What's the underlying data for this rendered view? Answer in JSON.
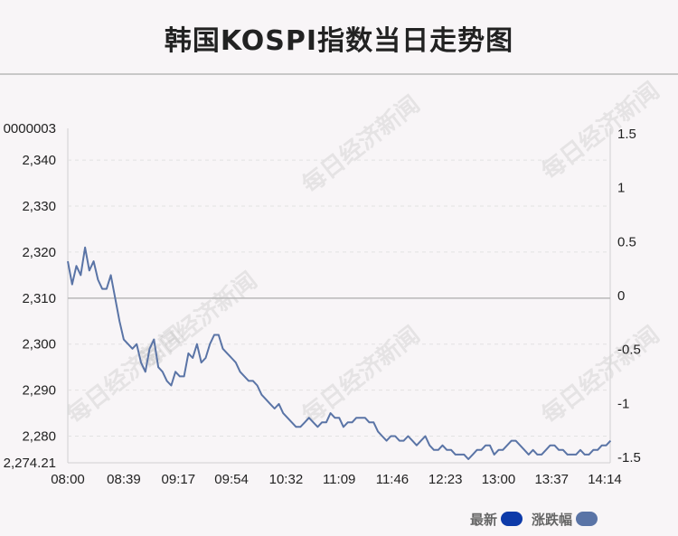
{
  "title": "韩国KOSPI指数当日走势图",
  "watermark_text": "每日经济新闻",
  "legend": {
    "latest_label": "最新",
    "change_label": "涨跌幅",
    "latest_color": "#0d3aa9",
    "change_color": "#5a74a6"
  },
  "chart_data": {
    "type": "line",
    "x_ticks": [
      "08:00",
      "08:39",
      "09:17",
      "09:54",
      "10:32",
      "11:09",
      "11:46",
      "12:23",
      "13:00",
      "13:37",
      "14:14"
    ],
    "y_left_ticks": [
      "2,274.21",
      "2,280",
      "2,290",
      "2,300",
      "2,310",
      "2,320",
      "2,330",
      "2,340",
      "0000003"
    ],
    "y_right_ticks": [
      "-1.5",
      "-1",
      "-0.5",
      "0",
      "0.5",
      "1",
      "1.5"
    ],
    "ylim_left": [
      2274.21,
      2346.9
    ],
    "ylim_right": [
      -1.55,
      1.55
    ],
    "reference_value": 2310.0,
    "line_color": "#5a74a6",
    "series": [
      {
        "x": [
          "08:00",
          "08:03",
          "08:06",
          "08:09",
          "08:12",
          "08:15",
          "08:18",
          "08:21",
          "08:24",
          "08:27",
          "08:30",
          "08:33",
          "08:36",
          "08:39",
          "08:42",
          "08:45",
          "08:48",
          "08:51",
          "08:54",
          "08:57",
          "09:00",
          "09:03",
          "09:06",
          "09:09",
          "09:12",
          "09:15",
          "09:18",
          "09:21",
          "09:24",
          "09:27",
          "09:30",
          "09:33",
          "09:36",
          "09:39",
          "09:42",
          "09:45",
          "09:48",
          "09:51",
          "09:54",
          "09:57",
          "10:00",
          "10:03",
          "10:06",
          "10:09",
          "10:12",
          "10:15",
          "10:18",
          "10:21",
          "10:24",
          "10:27",
          "10:30",
          "10:33",
          "10:36",
          "10:39",
          "10:42",
          "10:45",
          "10:48",
          "10:51",
          "10:54",
          "10:57",
          "11:00",
          "11:03",
          "11:06",
          "11:09",
          "11:12",
          "11:15",
          "11:18",
          "11:21",
          "11:24",
          "11:27",
          "11:30",
          "11:33",
          "11:36",
          "11:39",
          "11:42",
          "11:45",
          "11:48",
          "11:51",
          "11:54",
          "11:57",
          "12:00",
          "12:03",
          "12:06",
          "12:09",
          "12:12",
          "12:15",
          "12:18",
          "12:21",
          "12:24",
          "12:27",
          "12:30",
          "12:33",
          "12:36",
          "12:39",
          "12:42",
          "12:45",
          "12:48",
          "12:51",
          "12:54",
          "12:57",
          "13:00",
          "13:03",
          "13:06",
          "13:09",
          "13:12",
          "13:15",
          "13:18",
          "13:21",
          "13:24",
          "13:27",
          "13:30",
          "13:33",
          "13:36",
          "13:39",
          "13:42",
          "13:45",
          "13:48",
          "13:51",
          "13:54",
          "13:57",
          "14:00",
          "14:03",
          "14:06",
          "14:09",
          "14:12",
          "14:15",
          "14:18"
        ],
        "values": [
          2318,
          2313,
          2317,
          2315,
          2321,
          2316,
          2318,
          2314,
          2312,
          2312,
          2315,
          2310,
          2305,
          2301,
          2300,
          2299,
          2300,
          2296,
          2294,
          2299,
          2301,
          2295,
          2294,
          2292,
          2291,
          2294,
          2293,
          2293,
          2298,
          2297,
          2300,
          2296,
          2297,
          2300,
          2302,
          2302,
          2299,
          2298,
          2297,
          2296,
          2294,
          2293,
          2292,
          2292,
          2291,
          2289,
          2288,
          2287,
          2286,
          2287,
          2285,
          2284,
          2283,
          2282,
          2282,
          2283,
          2284,
          2283,
          2282,
          2283,
          2283,
          2285,
          2284,
          2284,
          2282,
          2283,
          2283,
          2284,
          2284,
          2284,
          2283,
          2283,
          2281,
          2280,
          2279,
          2280,
          2280,
          2279,
          2279,
          2280,
          2279,
          2278,
          2279,
          2280,
          2278,
          2277,
          2277,
          2278,
          2277,
          2277,
          2276,
          2276,
          2276,
          2275,
          2276,
          2277,
          2277,
          2278,
          2278,
          2276,
          2277,
          2277,
          2278,
          2279,
          2279,
          2278,
          2277,
          2276,
          2277,
          2276,
          2276,
          2277,
          2278,
          2278,
          2277,
          2277,
          2276,
          2276,
          2276,
          2277,
          2276,
          2276,
          2277,
          2277,
          2278,
          2278,
          2279
        ]
      }
    ]
  }
}
